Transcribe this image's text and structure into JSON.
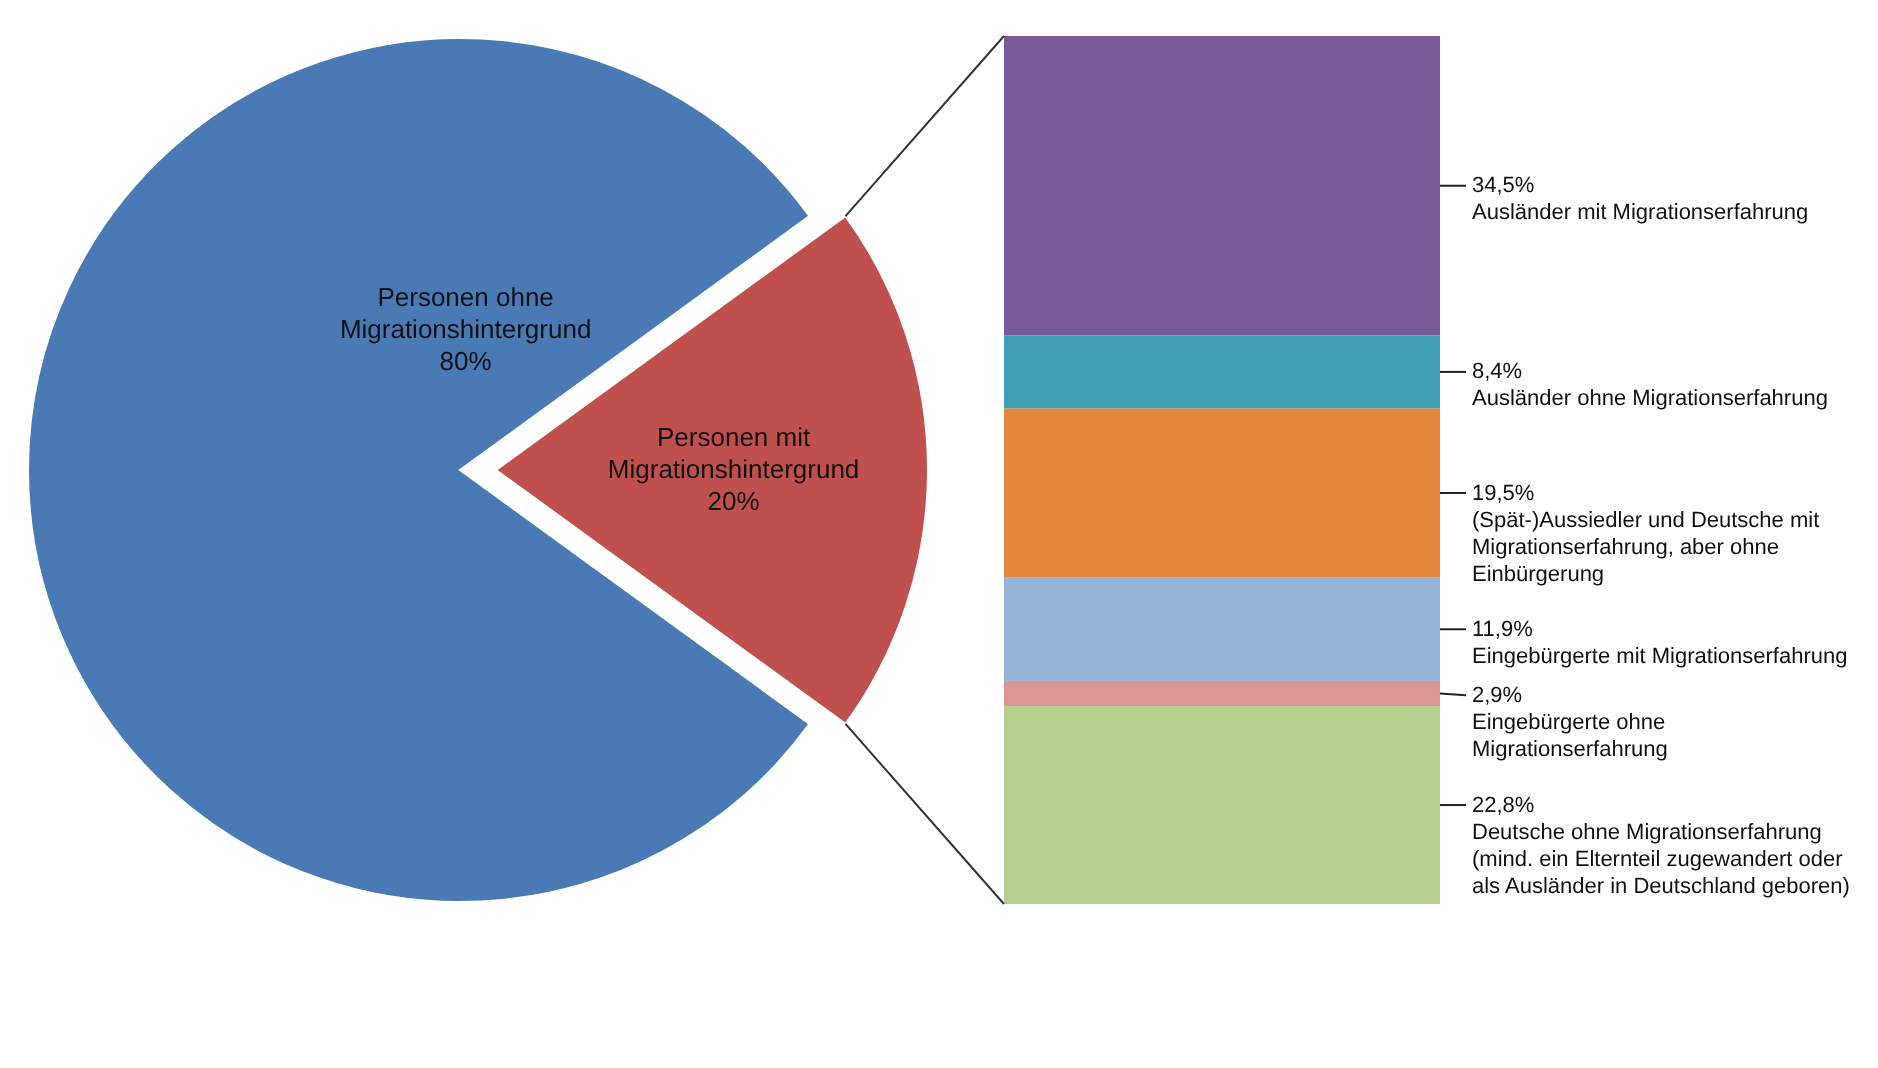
{
  "chart_data": [
    {
      "type": "pie",
      "categories": [
        "Personen ohne Migrationshintergrund",
        "Personen mit Migrationshintergrund"
      ],
      "values": [
        80,
        20
      ],
      "colors": [
        "#4a7ab5",
        "#c0504d"
      ],
      "value_labels": [
        "80%",
        "20%"
      ]
    },
    {
      "type": "bar",
      "stacked": true,
      "categories": [
        null
      ],
      "series": [
        {
          "name": "Deutsche ohne Migrationserfahrung (mind. ein Elternteil zugewandert oder als Ausländer in Deutschland geboren)",
          "color": "#b5cf8e",
          "values": [
            22.8
          ],
          "value_labels": [
            "22,8%"
          ]
        },
        {
          "name": "Eingebürgerte ohne Migrationserfahrung",
          "color": "#d99694",
          "values": [
            2.9
          ],
          "value_labels": [
            "2,9%"
          ]
        },
        {
          "name": "Eingebürgerte mit Migrationserfahrung",
          "color": "#95b3d7",
          "values": [
            11.9
          ],
          "value_labels": [
            "11,9%"
          ]
        },
        {
          "name": "(Spät-)Aussiedler und Deutsche mit Migrationserfahrung, aber ohne Einbürgerung",
          "color": "#e5873a",
          "values": [
            19.5
          ],
          "value_labels": [
            "19,5%"
          ]
        },
        {
          "name": "Ausländer ohne Migrationserfahrung",
          "color": "#3fa0b5",
          "values": [
            8.4
          ],
          "value_labels": [
            "8,4%"
          ]
        },
        {
          "name": "Ausländer mit Migrationserfahrung",
          "color": "#7b5a99",
          "values": [
            34.5
          ],
          "value_labels": [
            "34,5%"
          ]
        }
      ]
    }
  ]
}
